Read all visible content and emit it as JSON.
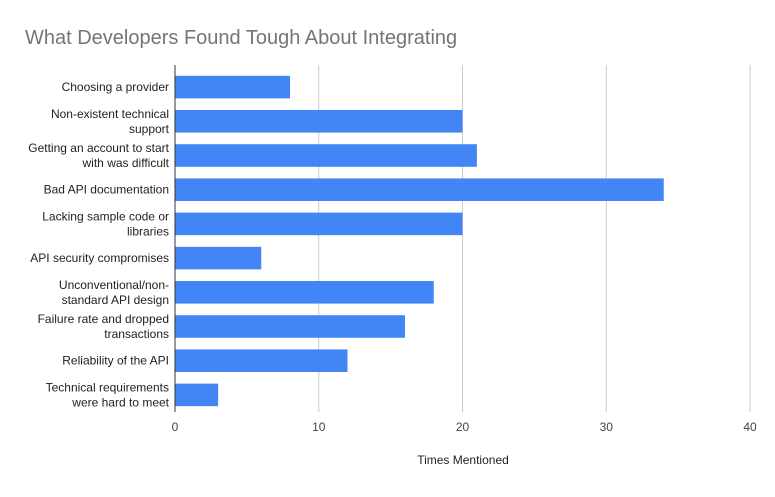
{
  "chart_data": {
    "type": "bar",
    "orientation": "horizontal",
    "title": "What Developers Found Tough About Integrating",
    "xlabel": "Times Mentioned",
    "ylabel": "",
    "categories": [
      [
        "Choosing a provider"
      ],
      [
        "Non-existent technical",
        "support"
      ],
      [
        "Getting an account to start",
        "with was difficult"
      ],
      [
        "Bad API documentation"
      ],
      [
        "Lacking sample code or",
        "libraries"
      ],
      [
        "API security compromises"
      ],
      [
        "Unconventional/non-",
        "standard API design"
      ],
      [
        "Failure rate and dropped",
        "transactions"
      ],
      [
        "Reliability of the API"
      ],
      [
        "Technical requirements",
        "were hard to meet"
      ]
    ],
    "values": [
      8,
      20,
      21,
      34,
      20,
      6,
      18,
      16,
      12,
      3
    ],
    "xlim": [
      0,
      40
    ],
    "xticks": [
      "0",
      "10",
      "20",
      "30",
      "40"
    ],
    "grid": true,
    "legend": "none",
    "colors": {
      "bar": "#4285f4",
      "grid": "#cccccc",
      "axis": "#333333"
    }
  }
}
